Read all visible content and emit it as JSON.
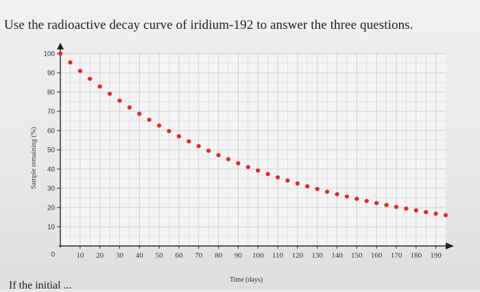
{
  "question_text": "Use the radioactive decay curve of iridium-192 to answer the three questions.",
  "footer_text": "If the initial ...",
  "chart_data": {
    "type": "scatter",
    "title": "",
    "xlabel": "Time (days)",
    "ylabel": "Sample remaining (%)",
    "xlim": [
      0,
      195
    ],
    "ylim": [
      0,
      100
    ],
    "x_ticks": [
      10,
      20,
      30,
      40,
      50,
      60,
      70,
      80,
      90,
      100,
      110,
      120,
      130,
      140,
      150,
      160,
      170,
      180,
      190
    ],
    "y_ticks": [
      0,
      10,
      20,
      30,
      40,
      50,
      60,
      70,
      80,
      90,
      100
    ],
    "grid": true,
    "marker_color": "#e8291c",
    "series": [
      {
        "x": [
          0,
          5,
          10,
          15,
          20,
          25,
          30,
          35,
          40,
          45,
          50,
          55,
          60,
          65,
          70,
          75,
          80,
          85,
          90,
          95,
          100,
          105,
          110,
          115,
          120,
          125,
          130,
          135,
          140,
          145,
          150,
          155,
          160,
          165,
          170,
          175,
          180,
          185,
          190,
          195
        ],
        "y": [
          100,
          95.4,
          91.0,
          86.9,
          82.9,
          79.1,
          75.5,
          72.0,
          68.7,
          65.6,
          62.6,
          59.7,
          57.0,
          54.4,
          51.9,
          49.5,
          47.2,
          45.1,
          43.0,
          41.0,
          39.2,
          37.4,
          35.7,
          34.0,
          32.5,
          31.0,
          29.6,
          28.2,
          26.9,
          25.7,
          24.5,
          23.4,
          22.3,
          21.3,
          20.3,
          19.4,
          18.5,
          17.6,
          16.8,
          16.0
        ]
      }
    ]
  }
}
